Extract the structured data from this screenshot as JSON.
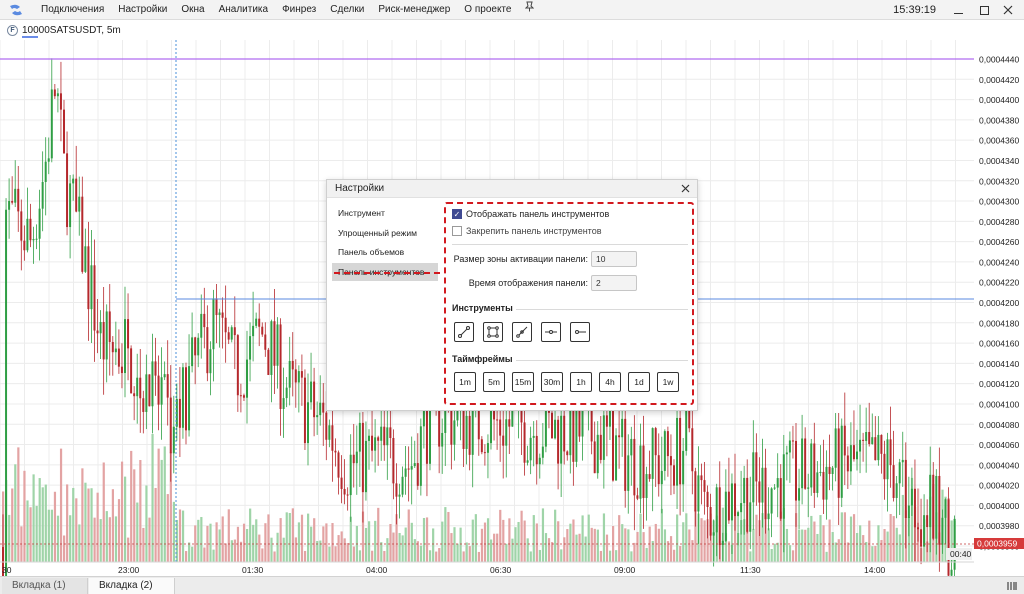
{
  "window": {
    "menu": [
      "Подключения",
      "Настройки",
      "Окна",
      "Аналитика",
      "Финрез",
      "Сделки",
      "Риск-менеджер",
      "О проекте"
    ],
    "clock": "15:39:19",
    "pin_icon": "pin-icon",
    "maximize_icon": "maximize-icon",
    "close_icon": "close-icon"
  },
  "chart_header": {
    "badge": "F",
    "title": "10000SATSUSDT, 5m"
  },
  "chart": {
    "price_labels": [
      "0,0004440",
      "0,0004420",
      "0,0004400",
      "0,0004380",
      "0,0004360",
      "0,0004340",
      "0,0004320",
      "0,0004300",
      "0,0004280",
      "0,0004260",
      "0,0004240",
      "0,0004220",
      "0,0004200",
      "0,0004180",
      "0,0004160",
      "0,0004140",
      "0,0004120",
      "0,0004100",
      "0,0004080",
      "0,0004060",
      "0,0004040",
      "0,0004020",
      "0,0004000",
      "0,0003980",
      "0,0003960"
    ],
    "current_price": "0,0003959",
    "current_time": "00:40",
    "time_labels": [
      "30",
      "23:00",
      "01:30",
      "04:00",
      "06:30",
      "09:00",
      "11:30",
      "14:00"
    ],
    "colors": {
      "up": "#2f9e44",
      "down": "#b5282c",
      "vol_up": "#9fd4a8",
      "vol_down": "#e3a3a3",
      "grid": "#ececec",
      "level_purple": "#b06cf0",
      "level_blue": "#5a8ae0"
    }
  },
  "dialog": {
    "title": "Настройки",
    "sidebar": [
      "Инструмент",
      "Упрощенный режим",
      "Панель объемов",
      "Панель инструментов"
    ],
    "active_index": 3,
    "show_panel_label": "Отображать панель инструментов",
    "show_panel_checked": true,
    "pin_panel_label": "Закрепить панель инструментов",
    "pin_panel_checked": false,
    "zone_size_label": "Размер зоны активации панели:",
    "zone_size_value": "10",
    "display_time_label": "Время отображения панели:",
    "display_time_value": "2",
    "tools_title": "Инструменты",
    "tools": [
      "trendline-icon",
      "rectangle-icon",
      "ray-icon",
      "horizontal-line-icon",
      "horizontal-ray-icon"
    ],
    "timeframes_title": "Таймфреймы",
    "timeframes": [
      "1m",
      "5m",
      "15m",
      "30m",
      "1h",
      "4h",
      "1d",
      "1w"
    ]
  },
  "tabs": [
    "Вкладка (1)",
    "Вкладка (2)"
  ],
  "active_tab": 1
}
